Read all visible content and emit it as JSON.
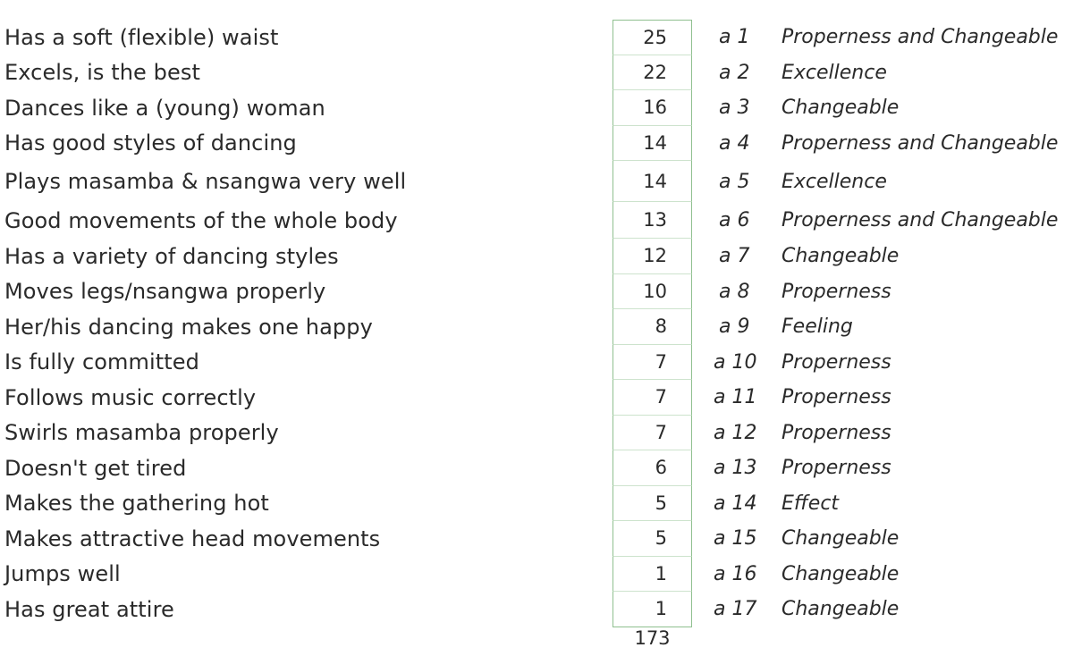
{
  "rows": [
    {
      "description": "Has a soft (flexible) waist",
      "count": "25",
      "code": "a 1",
      "category": "Properness and Changeable"
    },
    {
      "description": "Excels, is the best",
      "count": "22",
      "code": "a 2",
      "category": "Excellence"
    },
    {
      "description": "Dances like a (young) woman",
      "count": "16",
      "code": "a 3",
      "category": "Changeable"
    },
    {
      "description": "Has good styles of dancing",
      "count": "14",
      "code": "a 4",
      "category": "Properness and Changeable"
    },
    {
      "description": "Plays masamba & nsangwa very well",
      "count": "14",
      "code": "a 5",
      "category": "Excellence"
    },
    {
      "description": "Good movements of the whole body",
      "count": "13",
      "code": "a 6",
      "category": "Properness and Changeable"
    },
    {
      "description": "Has a variety of dancing styles",
      "count": "12",
      "code": "a 7",
      "category": "Changeable"
    },
    {
      "description": "Moves legs/nsangwa properly",
      "count": "10",
      "code": "a 8",
      "category": "Properness"
    },
    {
      "description": "Her/his dancing makes one happy",
      "count": "8",
      "code": "a 9",
      "category": "Feeling"
    },
    {
      "description": "Is fully committed",
      "count": "7",
      "code": "a 10",
      "category": "Properness"
    },
    {
      "description": "Follows music correctly",
      "count": "7",
      "code": "a 11",
      "category": "Properness"
    },
    {
      "description": "Swirls masamba properly",
      "count": "7",
      "code": "a 12",
      "category": "Properness"
    },
    {
      "description": "Doesn't get tired",
      "count": "6",
      "code": "a 13",
      "category": "Properness"
    },
    {
      "description": "Makes the gathering hot",
      "count": "5",
      "code": "a 14",
      "category": "Effect"
    },
    {
      "description": "Makes attractive head movements",
      "count": "5",
      "code": "a 15",
      "category": "Changeable"
    },
    {
      "description": "Jumps well",
      "count": "1",
      "code": "a 16",
      "category": "Changeable"
    },
    {
      "description": "Has great attire",
      "count": "1",
      "code": "a 17",
      "category": "Changeable"
    }
  ],
  "total": "173"
}
